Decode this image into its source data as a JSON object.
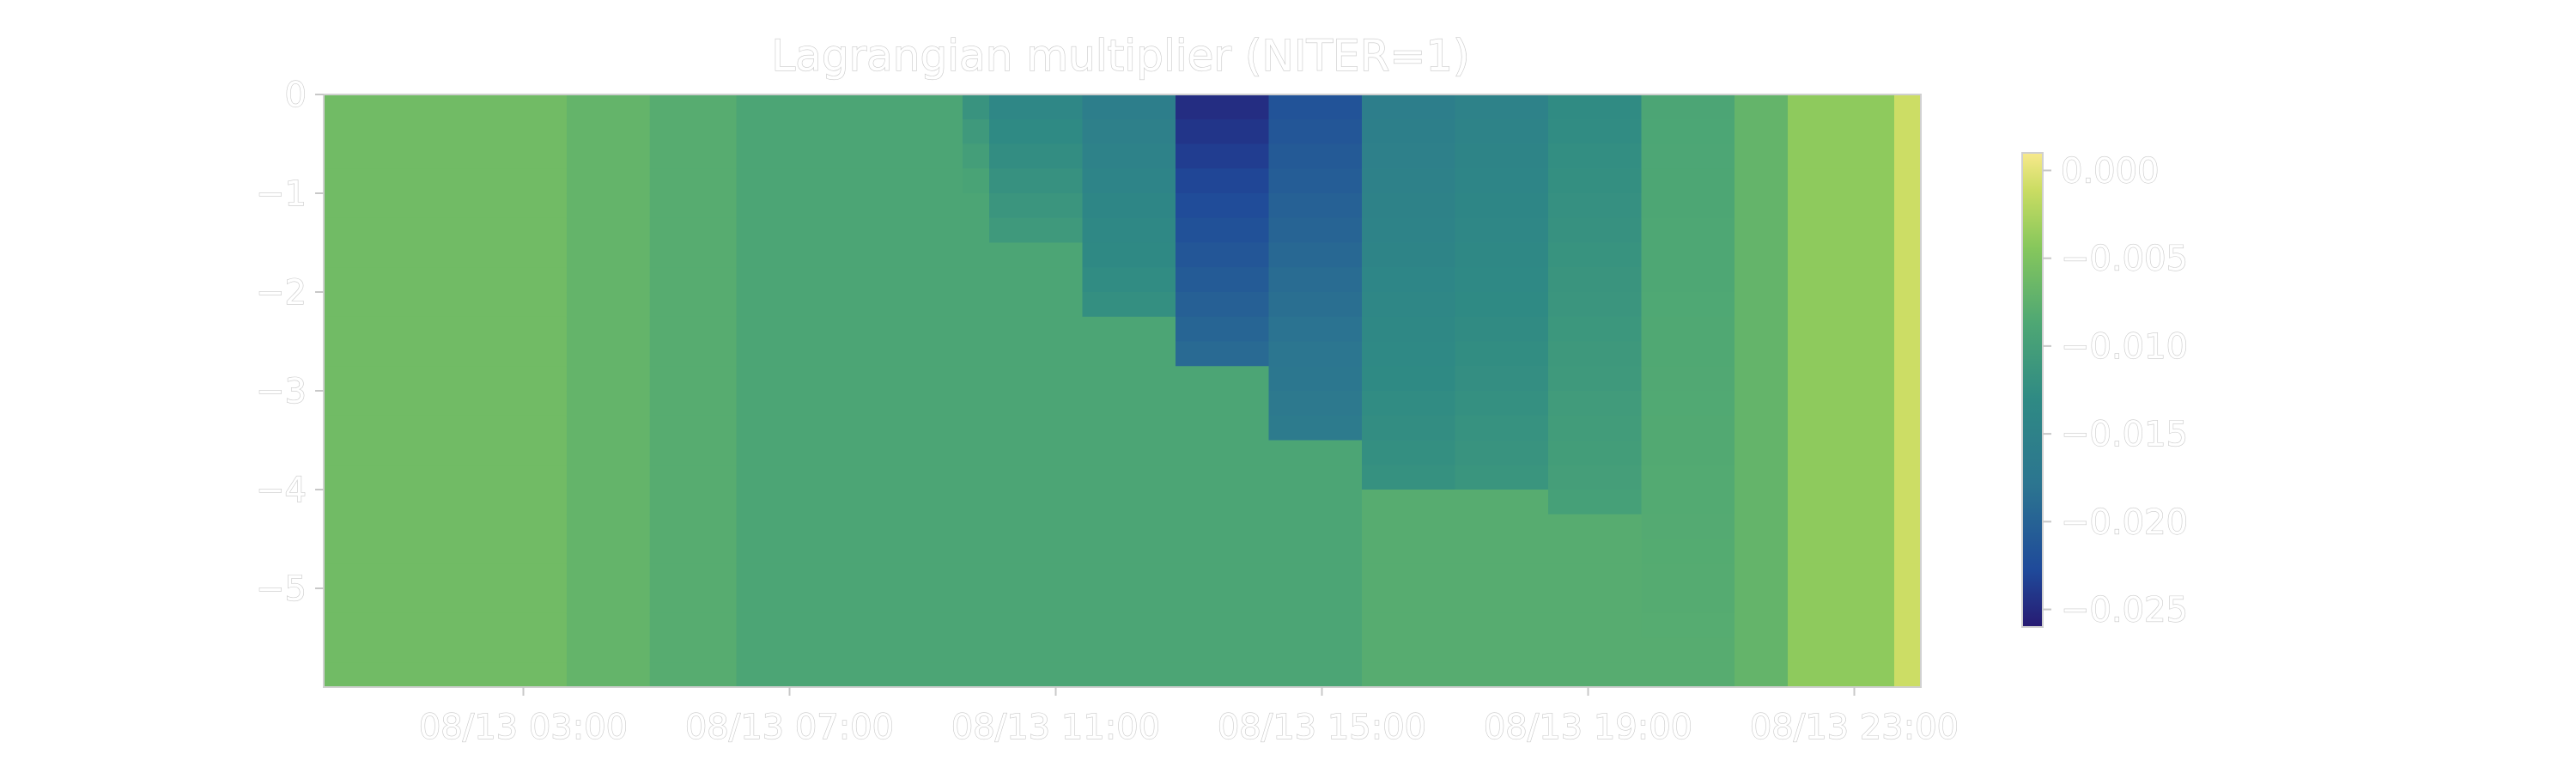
{
  "chart_data": {
    "type": "heatmap",
    "title": "Lagrangian multiplier (NITER=1)",
    "xlabel": "",
    "ylabel": "",
    "x_tick_labels": [
      "08/13 03:00",
      "08/13 07:00",
      "08/13 11:00",
      "08/13 15:00",
      "08/13 19:00",
      "08/13 23:00"
    ],
    "x_tick_hours": [
      3,
      7,
      11,
      15,
      19,
      23
    ],
    "xlim_hours": [
      0,
      24
    ],
    "y_ticks": [
      0,
      -1,
      -2,
      -3,
      -4,
      -5
    ],
    "y_tick_labels": [
      "0",
      "−1",
      "−2",
      "−3",
      "−4",
      "−5"
    ],
    "ylim": [
      -6,
      0
    ],
    "colormap": "viridis-like (yellow to dark blue)",
    "colorbar": {
      "ticks": [
        0.0,
        -0.005,
        -0.01,
        -0.015,
        -0.02,
        -0.025
      ],
      "tick_labels": [
        "0.000",
        "−0.005",
        "−0.010",
        "−0.015",
        "−0.020",
        "−0.025"
      ],
      "range": [
        -0.026,
        0.001
      ],
      "position": "right"
    },
    "columns": [
      {
        "t0": 0.0,
        "t1": 3.65,
        "surface": -0.006,
        "wedge_depth": 0,
        "base": -0.006
      },
      {
        "t0": 3.65,
        "t1": 4.9,
        "surface": -0.007,
        "wedge_depth": 0,
        "base": -0.007
      },
      {
        "t0": 4.9,
        "t1": 6.2,
        "surface": -0.008,
        "wedge_depth": 0,
        "base": -0.008
      },
      {
        "t0": 6.2,
        "t1": 9.6,
        "surface": -0.009,
        "wedge_depth": 0,
        "base": -0.009
      },
      {
        "t0": 9.6,
        "t1": 10.0,
        "surface": -0.012,
        "wedge_depth": 1.0,
        "base": -0.009
      },
      {
        "t0": 10.0,
        "t1": 11.4,
        "surface": -0.014,
        "wedge_depth": 1.5,
        "base": -0.009
      },
      {
        "t0": 11.4,
        "t1": 12.8,
        "surface": -0.016,
        "wedge_depth": 2.3,
        "base": -0.009
      },
      {
        "t0": 12.8,
        "t1": 14.2,
        "surface": -0.025,
        "wedge_depth": 2.8,
        "base": -0.009
      },
      {
        "t0": 14.2,
        "t1": 15.6,
        "surface": -0.022,
        "wedge_depth": 3.4,
        "base": -0.009
      },
      {
        "t0": 15.6,
        "t1": 17.0,
        "surface": -0.016,
        "wedge_depth": 3.9,
        "base": -0.008
      },
      {
        "t0": 17.0,
        "t1": 18.4,
        "surface": -0.015,
        "wedge_depth": 4.1,
        "base": -0.008
      },
      {
        "t0": 18.4,
        "t1": 19.8,
        "surface": -0.013,
        "wedge_depth": 4.2,
        "base": -0.008
      },
      {
        "t0": 19.8,
        "t1": 21.2,
        "surface": -0.009,
        "wedge_depth": 0,
        "base": -0.008
      },
      {
        "t0": 21.2,
        "t1": 22.0,
        "surface": -0.007,
        "wedge_depth": 0,
        "base": -0.007
      },
      {
        "t0": 22.0,
        "t1": 23.6,
        "surface": -0.004,
        "wedge_depth": 0,
        "base": -0.004
      },
      {
        "t0": 23.6,
        "t1": 24.0,
        "surface": -0.001,
        "wedge_depth": 0,
        "base": -0.001
      }
    ]
  }
}
